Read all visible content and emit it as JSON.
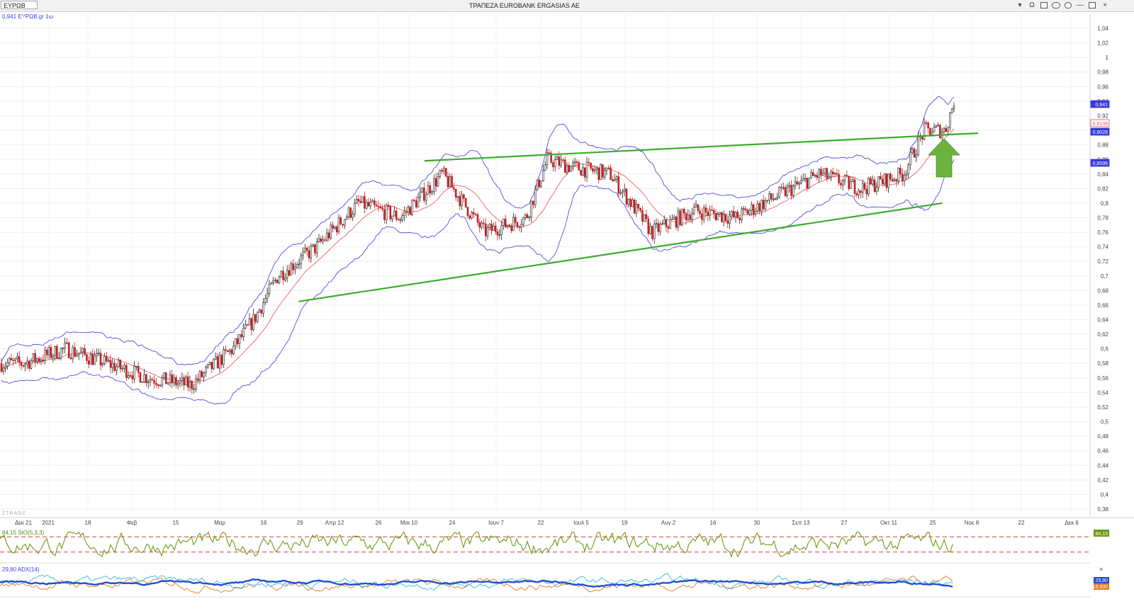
{
  "window": {
    "symbol": "ΕΥΡΩΒ",
    "title": "ΤΡΑΠΕΖΑ EUROBANK ERGASIAS AE",
    "buttons": [
      "▾",
      "Ω"
    ]
  },
  "legends": {
    "price": "0,941 ΕΥΡΩΒ.gr 1ω",
    "watermark": "ZTRADE",
    "stochastic": "84,15 StO(5,3,3)",
    "adx": "29,80 ADX(14)",
    "close": "×"
  },
  "colors": {
    "up_candle": "#202020",
    "down_candle": "#c81e1e",
    "bollinger": "#3a3adb",
    "moving_average": "#e0505a",
    "trendline": "#3cab2c",
    "arrow": "#6db33f",
    "stochastic": "#6b9a12",
    "stochastic_levels": "#d23c3c",
    "adx": "#1f4fd1",
    "di_plus": "#35b6e6",
    "di_minus": "#e07a1e"
  },
  "chart_data": [
    {
      "type": "candlestick",
      "series_label": "ΕΥΡΩΒ.gr 1ω",
      "y_ticks": [
        "1,04",
        "1,02",
        "1",
        "0,98",
        "0,96",
        "0,94",
        "0,92",
        "0,9",
        "0,88",
        "0,86",
        "0,84",
        "0,82",
        "0,8",
        "0,78",
        "0,76",
        "0,74",
        "0,72",
        "0,7",
        "0,68",
        "0,66",
        "0,64",
        "0,62",
        "0,6",
        "0,58",
        "0,56",
        "0,54",
        "0,52",
        "0,5",
        "0,48",
        "0,46",
        "0,44",
        "0,42",
        "0,4",
        "0,38"
      ],
      "y_range": [
        0.37,
        1.045
      ],
      "x_ticks": [
        "Δεκ 21",
        "2021",
        "18",
        "Φεβ",
        "15",
        "Μαρ",
        "16",
        "29",
        "Απρ 12",
        "26",
        "Μαι 10",
        "24",
        "Ιουν 7",
        "22",
        "Ιουλ 5",
        "19",
        "Αυγ 2",
        "16",
        "30",
        "Σεπ 13",
        "27",
        "Οκτ 11",
        "25",
        "Νοε 8",
        "22",
        "Δεκ 6"
      ],
      "price_path_points": [
        [
          "2020-12-21",
          0.58
        ],
        [
          "2021-01-04",
          0.6
        ],
        [
          "2021-01-18",
          0.58
        ],
        [
          "2021-02-01",
          0.56
        ],
        [
          "2021-02-15",
          0.55
        ],
        [
          "2021-03-01",
          0.6
        ],
        [
          "2021-03-08",
          0.64
        ],
        [
          "2021-03-16",
          0.7
        ],
        [
          "2021-03-29",
          0.74
        ],
        [
          "2021-04-12",
          0.8
        ],
        [
          "2021-04-26",
          0.78
        ],
        [
          "2021-05-10",
          0.84
        ],
        [
          "2021-05-24",
          0.76
        ],
        [
          "2021-06-07",
          0.78
        ],
        [
          "2021-06-14",
          0.86
        ],
        [
          "2021-06-22",
          0.85
        ],
        [
          "2021-07-05",
          0.84
        ],
        [
          "2021-07-19",
          0.76
        ],
        [
          "2021-08-02",
          0.79
        ],
        [
          "2021-08-16",
          0.78
        ],
        [
          "2021-08-30",
          0.81
        ],
        [
          "2021-09-13",
          0.84
        ],
        [
          "2021-09-27",
          0.82
        ],
        [
          "2021-10-11",
          0.84
        ],
        [
          "2021-10-18",
          0.9
        ],
        [
          "2021-10-25",
          0.9
        ],
        [
          "2021-10-28",
          0.941
        ]
      ],
      "price_labels": [
        {
          "text": "0,941",
          "color": "#3a3adb"
        },
        {
          "text": "0,9139",
          "color": "#e0505a"
        },
        {
          "text": "0,9028",
          "color": "#3a3adb"
        },
        {
          "text": "0,8596",
          "color": "#3a3adb"
        }
      ],
      "resistance_line": {
        "from": [
          "2021-05-04",
          0.858
        ],
        "to": [
          "2021-11-05",
          0.896
        ]
      },
      "support_line": {
        "from": [
          "2021-03-23",
          0.665
        ],
        "to": [
          "2021-10-24",
          0.8
        ]
      }
    },
    {
      "type": "line",
      "title": "StO(5,3,3)",
      "last_value": "84,15",
      "levels": [
        80,
        20
      ],
      "ylim": [
        0,
        100
      ]
    },
    {
      "type": "line",
      "title": "ADX(14)",
      "last_value": "29,80",
      "value_labels": [
        "29,80",
        "19,900"
      ]
    }
  ]
}
